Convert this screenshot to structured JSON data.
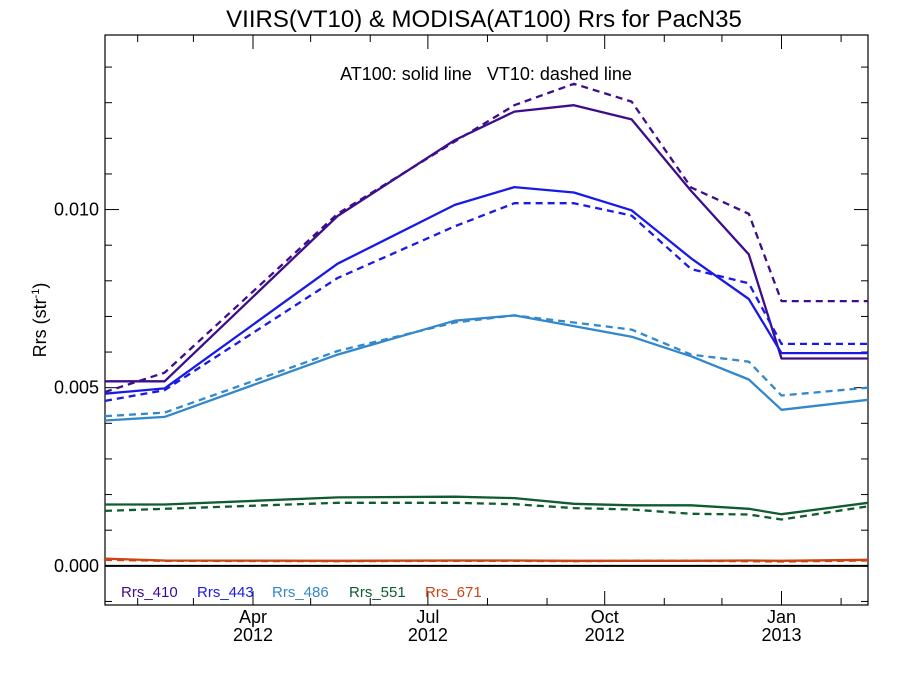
{
  "chart_data": {
    "type": "line",
    "title": "VIIRS(VT10) & MODISA(AT100)  Rrs for PacN35",
    "xlabel": "",
    "ylabel": "Rrs (str",
    "ylabel_sup": "-1",
    "ylabel_close": ")",
    "annotation": "AT100: solid line   VT10: dashed line",
    "xlim": [
      "2012-01-15",
      "2013-02-15"
    ],
    "ylim": [
      -0.0011,
      0.0149
    ],
    "y_ticks": [
      {
        "value": 0.0,
        "label": "0.000"
      },
      {
        "value": 0.005,
        "label": "0.005"
      },
      {
        "value": 0.01,
        "label": "0.010"
      }
    ],
    "x_ticks": [
      {
        "date": "2012-04-01",
        "month": "Apr",
        "year": "2012"
      },
      {
        "date": "2012-07-01",
        "month": "Jul",
        "year": "2012"
      },
      {
        "date": "2012-10-01",
        "month": "Oct",
        "year": "2012"
      },
      {
        "date": "2013-01-01",
        "month": "Jan",
        "year": "2013"
      }
    ],
    "x": [
      "2012-01-15",
      "2012-02-15",
      "2012-05-15",
      "2012-07-15",
      "2012-08-15",
      "2012-09-15",
      "2012-10-15",
      "2012-11-15",
      "2012-12-15",
      "2013-01-01",
      "2013-02-15"
    ],
    "series": [
      {
        "name": "Rrs_410",
        "color": "#3d0d8c",
        "solid": [
          0.00518,
          0.00518,
          0.00982,
          0.01195,
          0.01275,
          0.01293,
          0.01253,
          0.01052,
          0.00874,
          0.00582,
          0.00582
        ],
        "dashed": [
          0.00488,
          0.00542,
          0.00988,
          0.01191,
          0.01293,
          0.01353,
          0.01303,
          0.01062,
          0.00988,
          0.00743,
          0.00743
        ]
      },
      {
        "name": "Rrs_443",
        "color": "#1a1ae6",
        "solid": [
          0.00483,
          0.00498,
          0.00848,
          0.01013,
          0.01063,
          0.01048,
          0.00998,
          0.00863,
          0.00749,
          0.00597,
          0.00597
        ],
        "dashed": [
          0.00463,
          0.00493,
          0.00808,
          0.00953,
          0.01018,
          0.01018,
          0.00983,
          0.00833,
          0.00793,
          0.00623,
          0.00623
        ]
      },
      {
        "name": "Rrs_486",
        "color": "#3388cc",
        "solid": [
          0.00408,
          0.00418,
          0.00593,
          0.00688,
          0.00703,
          0.00673,
          0.00643,
          0.00588,
          0.00523,
          0.00438,
          0.00466
        ],
        "dashed": [
          0.0042,
          0.0043,
          0.00603,
          0.00683,
          0.00703,
          0.00683,
          0.00663,
          0.00593,
          0.00573,
          0.00478,
          0.005
        ]
      },
      {
        "name": "Rrs_551",
        "color": "#0f5c2e",
        "solid": [
          0.00172,
          0.00172,
          0.00192,
          0.00194,
          0.0019,
          0.00174,
          0.0017,
          0.0017,
          0.0016,
          0.00145,
          0.00177
        ],
        "dashed": [
          0.00154,
          0.0016,
          0.00177,
          0.00177,
          0.00173,
          0.00162,
          0.00158,
          0.00146,
          0.00144,
          0.0013,
          0.00167
        ]
      },
      {
        "name": "Rrs_671",
        "color": "#cc4411",
        "solid": [
          0.0002,
          0.00015,
          0.00014,
          0.00015,
          0.00015,
          0.00014,
          0.00014,
          0.00014,
          0.00015,
          0.00014,
          0.00017
        ],
        "dashed": [
          0.00017,
          0.00014,
          0.00013,
          0.00014,
          0.00014,
          0.00013,
          0.00014,
          0.00014,
          0.00013,
          0.00012,
          0.00015
        ]
      }
    ],
    "zero_line": true,
    "grid": false,
    "legend_position": "bottom-left"
  }
}
